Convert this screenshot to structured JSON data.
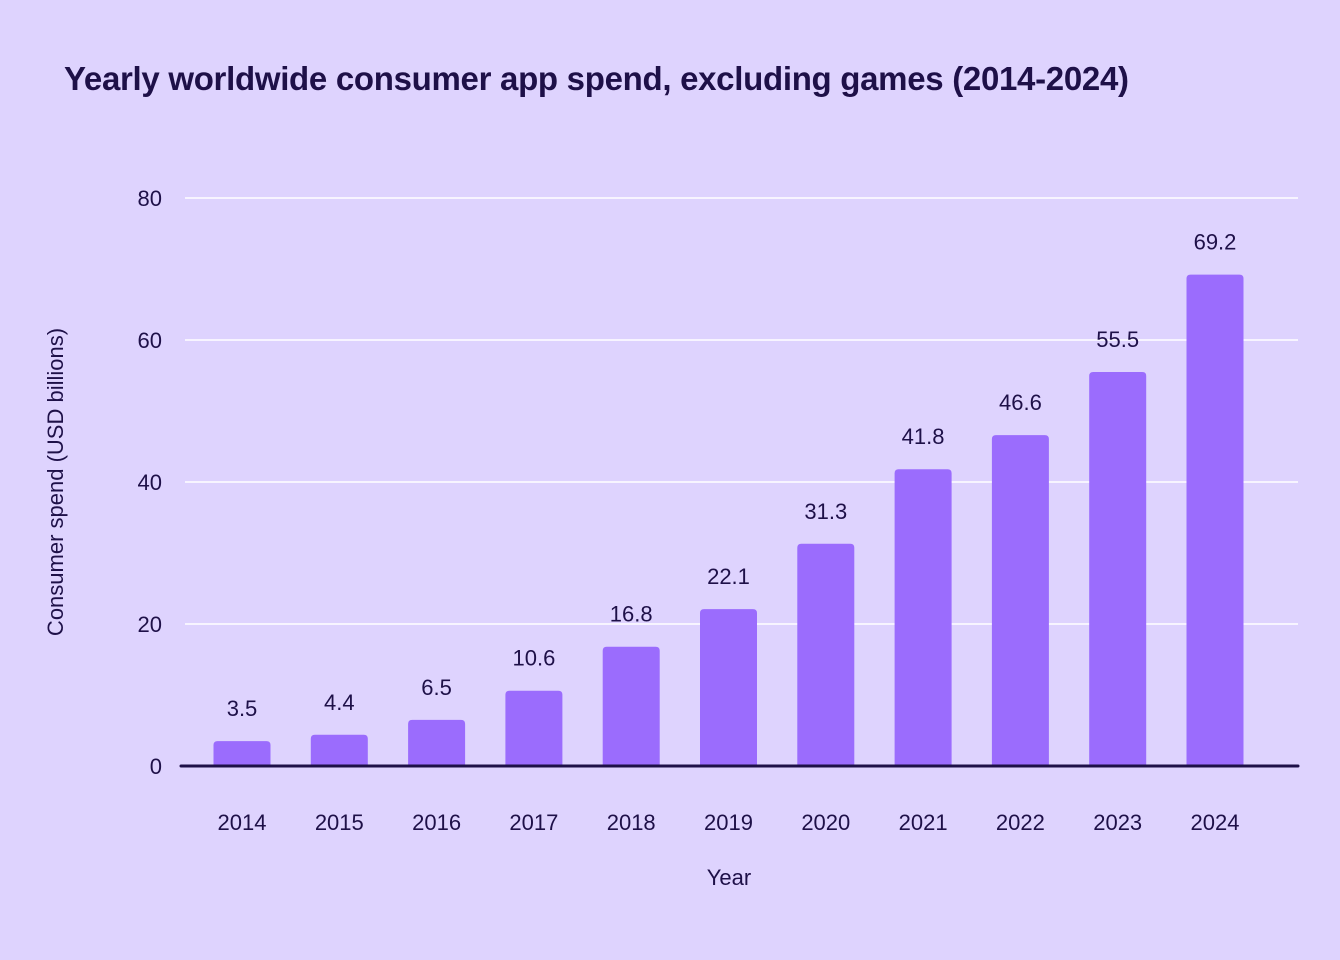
{
  "chart_data": {
    "type": "bar",
    "title": "Yearly worldwide consumer app spend, excluding games (2014-2024)",
    "xlabel": "Year",
    "ylabel": "Consumer spend (USD billions)",
    "categories": [
      "2014",
      "2015",
      "2016",
      "2017",
      "2018",
      "2019",
      "2020",
      "2021",
      "2022",
      "2023",
      "2024"
    ],
    "values": [
      3.5,
      4.4,
      6.5,
      10.6,
      16.8,
      22.1,
      31.3,
      41.8,
      46.6,
      55.5,
      69.2
    ],
    "data_labels": [
      "3.5",
      "4.4",
      "6.5",
      "10.6",
      "16.8",
      "22.1",
      "31.3",
      "41.8",
      "46.6",
      "55.5",
      "69.2"
    ],
    "ylim": [
      0,
      80
    ],
    "yticks": [
      "0",
      "20",
      "40",
      "60",
      "80"
    ],
    "grid": true,
    "colors": {
      "background": "#ded3fe",
      "bar": "#9b6cfd",
      "text": "#1e1048",
      "grid": "#ffffff",
      "axis": "#1e1048"
    }
  }
}
